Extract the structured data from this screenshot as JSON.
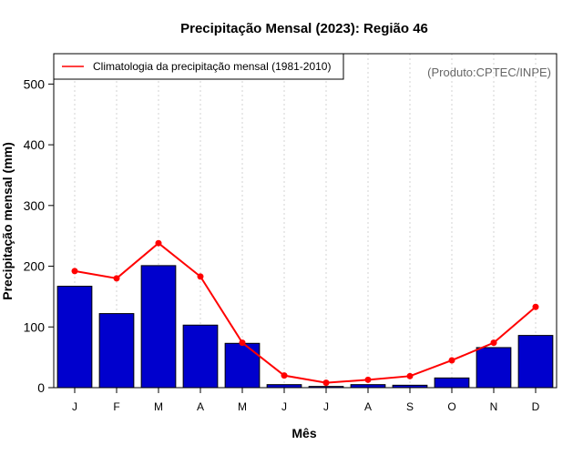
{
  "chart_data": {
    "type": "bar",
    "title": "Precipitação Mensal (2023): Região 46",
    "xlabel": "Mês",
    "ylabel": "Precipitação mensal (mm)",
    "categories": [
      "J",
      "F",
      "M",
      "A",
      "M",
      "J",
      "J",
      "A",
      "S",
      "O",
      "N",
      "D"
    ],
    "ylim": [
      0,
      550
    ],
    "yticks": [
      0,
      100,
      200,
      300,
      400,
      500
    ],
    "grid": "vertical dotted",
    "series": [
      {
        "name": "Precipitação mensal 2023",
        "kind": "bar",
        "color": "#0000CD",
        "values": [
          167,
          122,
          201,
          103,
          73,
          5,
          2,
          5,
          4,
          16,
          66,
          86
        ]
      },
      {
        "name": "Climatologia da precipitação mensal (1981-2010)",
        "kind": "line",
        "color": "#FF0000",
        "values": [
          192,
          180,
          238,
          183,
          74,
          20,
          8,
          13,
          19,
          45,
          74,
          133
        ]
      }
    ],
    "legend": {
      "position": "top-left",
      "entries": [
        "Climatologia da precipitação mensal (1981-2010)"
      ]
    },
    "annotation": "(Produto:CPTEC/INPE)"
  }
}
